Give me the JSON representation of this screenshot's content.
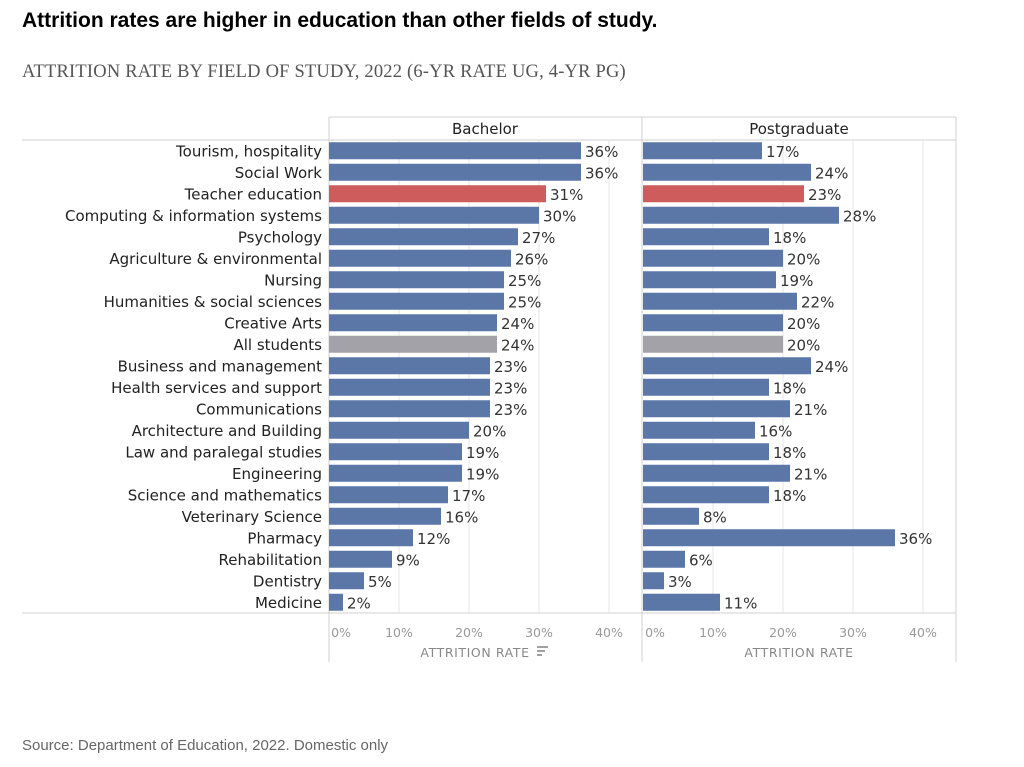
{
  "headline": "Attrition rates are higher in education than other fields of study.",
  "subtitle": "ATTRITION RATE BY FIELD OF STUDY, 2022 (6-YR RATE UG, 4-YR PG)",
  "source": "Source: Department of Education, 2022. Domestic only",
  "colors": {
    "default_bar": "#5a77a8",
    "highlight_bar": "#cf5c5c",
    "all_students_bar": "#a2a2a8",
    "grid": "#e4e4e4",
    "frame": "#d0d0d0"
  },
  "chart_data": {
    "type": "bar",
    "orientation": "horizontal",
    "categories": [
      "Tourism, hospitality",
      "Social Work",
      "Teacher education",
      "Computing & information systems",
      "Psychology",
      "Agriculture & environmental",
      "Nursing",
      "Humanities & social sciences",
      "Creative Arts",
      "All students",
      "Business and management",
      "Health services and support",
      "Communications",
      "Architecture and Building",
      "Law and paralegal studies",
      "Engineering",
      "Science and mathematics",
      "Veterinary Science",
      "Pharmacy",
      "Rehabilitation",
      "Dentistry",
      "Medicine"
    ],
    "highlight": "Teacher education",
    "reference": "All students",
    "panels": [
      {
        "name": "Bachelor",
        "values": [
          36,
          36,
          31,
          30,
          27,
          26,
          25,
          25,
          24,
          24,
          23,
          23,
          23,
          20,
          19,
          19,
          17,
          16,
          12,
          9,
          5,
          2
        ],
        "labels": [
          "36%",
          "36%",
          "31%",
          "30%",
          "27%",
          "26%",
          "25%",
          "25%",
          "24%",
          "24%",
          "23%",
          "23%",
          "23%",
          "20%",
          "19%",
          "19%",
          "17%",
          "16%",
          "12%",
          "9%",
          "5%",
          "2%"
        ],
        "xlabel": "ATTRITION RATE",
        "sort_indicator": true
      },
      {
        "name": "Postgraduate",
        "values": [
          17,
          24,
          23,
          28,
          18,
          20,
          19,
          22,
          20,
          20,
          24,
          18,
          21,
          16,
          18,
          21,
          18,
          8,
          36,
          6,
          3,
          11
        ],
        "labels": [
          "17%",
          "24%",
          "23%",
          "28%",
          "18%",
          "20%",
          "19%",
          "22%",
          "20%",
          "20%",
          "24%",
          "18%",
          "21%",
          "16%",
          "18%",
          "21%",
          "18%",
          "8%",
          "36%",
          "6%",
          "3%",
          "11%"
        ],
        "xlabel": "ATTRITION RATE",
        "sort_indicator": false
      }
    ],
    "xticks": [
      0,
      10,
      20,
      30,
      40
    ],
    "xtick_labels": [
      "0%",
      "10%",
      "20%",
      "30%",
      "40%"
    ],
    "xlim": [
      0,
      44
    ],
    "grid": true
  }
}
